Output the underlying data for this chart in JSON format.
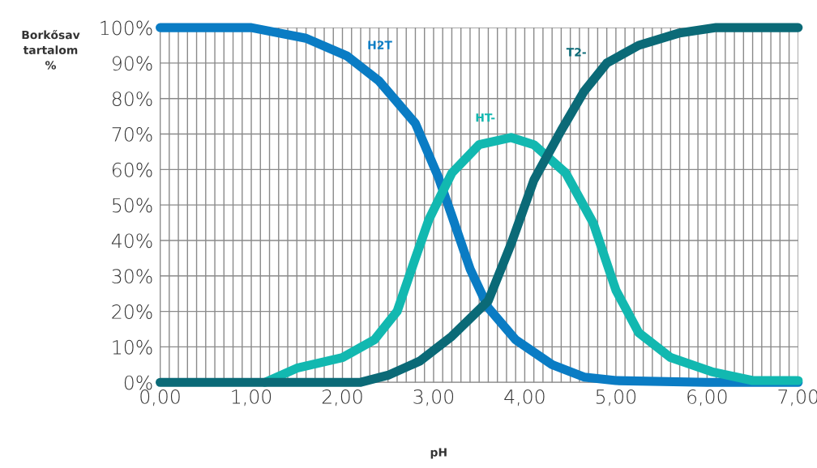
{
  "chart_data": {
    "type": "line",
    "xlabel": "pH",
    "ylabel": "Borkősav\ntartalom\n%",
    "grid": true,
    "line_style": "solid",
    "marker": "none",
    "xlim": [
      0,
      7
    ],
    "ylim": [
      0,
      100
    ],
    "xticks": [
      {
        "value": 0,
        "label": "0,00"
      },
      {
        "value": 0.1,
        "label": null
      },
      {
        "value": 0.2,
        "label": null
      },
      {
        "value": 0.3,
        "label": null
      },
      {
        "value": 0.4,
        "label": null
      },
      {
        "value": 0.5,
        "label": null
      },
      {
        "value": 0.6,
        "label": null
      },
      {
        "value": 0.7,
        "label": null
      },
      {
        "value": 0.8,
        "label": null
      },
      {
        "value": 0.9,
        "label": null
      },
      {
        "value": 1,
        "label": "1,00"
      },
      {
        "value": 1.1,
        "label": null
      },
      {
        "value": 1.2,
        "label": null
      },
      {
        "value": 1.3,
        "label": null
      },
      {
        "value": 1.4,
        "label": null
      },
      {
        "value": 1.5,
        "label": null
      },
      {
        "value": 1.6,
        "label": null
      },
      {
        "value": 1.7,
        "label": null
      },
      {
        "value": 1.8,
        "label": null
      },
      {
        "value": 1.9,
        "label": null
      },
      {
        "value": 2,
        "label": "2,00"
      },
      {
        "value": 2.1,
        "label": null
      },
      {
        "value": 2.2,
        "label": null
      },
      {
        "value": 2.3,
        "label": null
      },
      {
        "value": 2.4,
        "label": null
      },
      {
        "value": 2.5,
        "label": null
      },
      {
        "value": 2.6,
        "label": null
      },
      {
        "value": 2.7,
        "label": null
      },
      {
        "value": 2.8,
        "label": null
      },
      {
        "value": 2.9,
        "label": null
      },
      {
        "value": 3,
        "label": "3,00"
      },
      {
        "value": 3.1,
        "label": null
      },
      {
        "value": 3.2,
        "label": null
      },
      {
        "value": 3.3,
        "label": null
      },
      {
        "value": 3.4,
        "label": null
      },
      {
        "value": 3.5,
        "label": null
      },
      {
        "value": 3.6,
        "label": null
      },
      {
        "value": 3.7,
        "label": null
      },
      {
        "value": 3.8,
        "label": null
      },
      {
        "value": 3.9,
        "label": null
      },
      {
        "value": 4,
        "label": "4,00"
      },
      {
        "value": 4.1,
        "label": null
      },
      {
        "value": 4.2,
        "label": null
      },
      {
        "value": 4.3,
        "label": null
      },
      {
        "value": 4.4,
        "label": null
      },
      {
        "value": 4.5,
        "label": null
      },
      {
        "value": 4.6,
        "label": null
      },
      {
        "value": 4.7,
        "label": null
      },
      {
        "value": 4.8,
        "label": null
      },
      {
        "value": 4.9,
        "label": null
      },
      {
        "value": 5,
        "label": "5,00"
      },
      {
        "value": 5.1,
        "label": null
      },
      {
        "value": 5.2,
        "label": null
      },
      {
        "value": 5.3,
        "label": null
      },
      {
        "value": 5.4,
        "label": null
      },
      {
        "value": 5.5,
        "label": null
      },
      {
        "value": 5.6,
        "label": null
      },
      {
        "value": 5.7,
        "label": null
      },
      {
        "value": 5.8,
        "label": null
      },
      {
        "value": 5.9,
        "label": null
      },
      {
        "value": 6,
        "label": "6,00"
      },
      {
        "value": 6.1,
        "label": null
      },
      {
        "value": 6.2,
        "label": null
      },
      {
        "value": 6.3,
        "label": null
      },
      {
        "value": 6.4,
        "label": null
      },
      {
        "value": 6.5,
        "label": null
      },
      {
        "value": 6.6,
        "label": null
      },
      {
        "value": 6.7,
        "label": null
      },
      {
        "value": 6.8,
        "label": null
      },
      {
        "value": 6.9,
        "label": null
      },
      {
        "value": 7,
        "label": "7,00"
      }
    ],
    "yticks": [
      {
        "value": 0,
        "label": "0%"
      },
      {
        "value": 10,
        "label": "10%"
      },
      {
        "value": 20,
        "label": "20%"
      },
      {
        "value": 30,
        "label": "30%"
      },
      {
        "value": 40,
        "label": "40%"
      },
      {
        "value": 50,
        "label": "50%"
      },
      {
        "value": 60,
        "label": "60%"
      },
      {
        "value": 70,
        "label": "70%"
      },
      {
        "value": 80,
        "label": "80%"
      },
      {
        "value": 90,
        "label": "90%"
      },
      {
        "value": 100,
        "label": "100%"
      }
    ],
    "series": [
      {
        "name": "H2T",
        "color": "#0a7cc4",
        "x": [
          0,
          1.0,
          1.6,
          2.05,
          2.4,
          2.8,
          3.05,
          3.2,
          3.4,
          3.6,
          3.9,
          4.3,
          4.65,
          5.0,
          6.0,
          7.0
        ],
        "values": [
          100,
          100,
          97,
          92,
          85,
          73,
          58,
          47,
          32,
          21,
          12,
          5,
          1.5,
          0.5,
          0,
          0
        ]
      },
      {
        "name": "HT-",
        "color": "#12b8b0",
        "x": [
          1.15,
          1.5,
          2.0,
          2.35,
          2.6,
          2.8,
          2.95,
          3.2,
          3.5,
          3.85,
          4.1,
          4.45,
          4.75,
          5.0,
          5.25,
          5.6,
          6.05,
          6.5,
          7.0
        ],
        "values": [
          0,
          4,
          7,
          12,
          20,
          35,
          46,
          59,
          67,
          69,
          67,
          59,
          45,
          26,
          14,
          7,
          3,
          0.5,
          0.5
        ]
      },
      {
        "name": "T2-",
        "color": "#0b6a77",
        "x": [
          0,
          1.0,
          2.2,
          2.5,
          2.85,
          3.2,
          3.6,
          3.85,
          4.1,
          4.4,
          4.65,
          4.9,
          5.25,
          5.7,
          6.1,
          7.0
        ],
        "values": [
          0,
          0,
          0,
          2,
          6,
          13,
          23,
          39,
          57,
          71,
          82,
          90,
          95,
          98.5,
          100,
          100
        ]
      }
    ]
  }
}
